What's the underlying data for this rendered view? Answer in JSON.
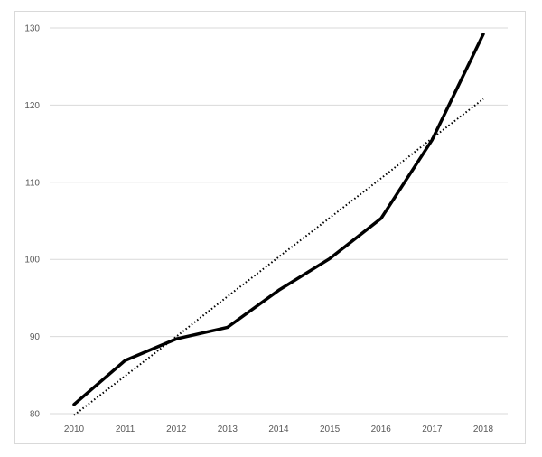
{
  "chart_data": {
    "type": "line",
    "title": "",
    "xlabel": "",
    "ylabel": "",
    "categories": [
      "2010",
      "2011",
      "2012",
      "2013",
      "2014",
      "2015",
      "2016",
      "2017",
      "2018"
    ],
    "series": [
      {
        "style": "solid",
        "color": "#000000",
        "values": [
          81.2,
          86.9,
          89.7,
          91.2,
          96.0,
          100.1,
          105.3,
          115.5,
          129.2
        ]
      },
      {
        "style": "dotted",
        "trendline": "linear",
        "color": "#000000",
        "values": [
          79.8,
          84.9,
          90.0,
          95.2,
          100.3,
          105.4,
          110.5,
          115.7,
          120.8
        ]
      }
    ],
    "ylim": [
      80,
      130
    ],
    "yticks": [
      "80",
      "90",
      "100",
      "110",
      "120",
      "130"
    ],
    "grid": "horizontal",
    "legend": "none",
    "gridColor": "#d9d9d9"
  }
}
